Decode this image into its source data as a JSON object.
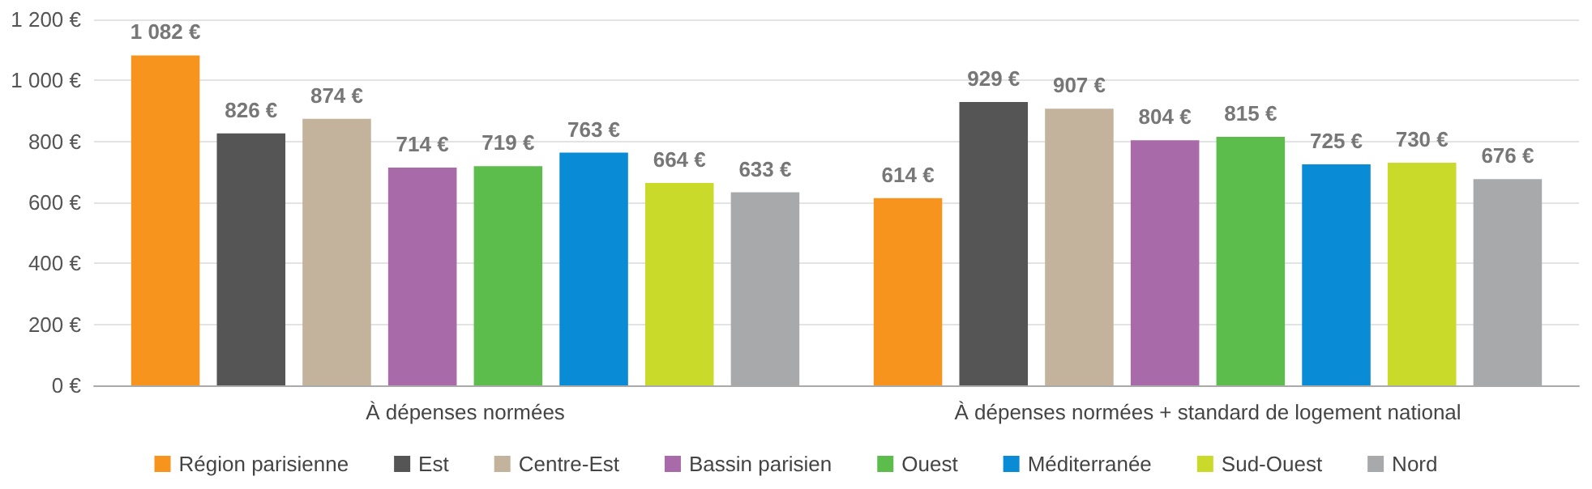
{
  "chart_data": {
    "type": "bar",
    "categories": [
      "À dépenses normées",
      "À dépenses normées + standard de logement national"
    ],
    "series": [
      {
        "name": "Région parisienne",
        "color": "#f7941d",
        "values": [
          1082,
          614
        ],
        "value_labels": [
          "1 082 €",
          "614 €"
        ]
      },
      {
        "name": "Est",
        "color": "#555555",
        "values": [
          826,
          929
        ],
        "value_labels": [
          "826 €",
          "929 €"
        ]
      },
      {
        "name": "Centre-Est",
        "color": "#c4b39c",
        "values": [
          874,
          907
        ],
        "value_labels": [
          "874 €",
          "907 €"
        ]
      },
      {
        "name": "Bassin parisien",
        "color": "#a86aa8",
        "values": [
          714,
          804
        ],
        "value_labels": [
          "714 €",
          "804 €"
        ]
      },
      {
        "name": "Ouest",
        "color": "#5cbc4c",
        "values": [
          719,
          815
        ],
        "value_labels": [
          "719 €",
          "815 €"
        ]
      },
      {
        "name": "Méditerranée",
        "color": "#0a8bd6",
        "values": [
          763,
          725
        ],
        "value_labels": [
          "763 €",
          "725 €"
        ]
      },
      {
        "name": "Sud-Ouest",
        "color": "#c9da2b",
        "values": [
          664,
          730
        ],
        "value_labels": [
          "664 €",
          "730 €"
        ]
      },
      {
        "name": "Nord",
        "color": "#a7a9ab",
        "values": [
          633,
          676
        ],
        "value_labels": [
          "633 €",
          "676 €"
        ]
      }
    ],
    "ylim": [
      0,
      1200
    ],
    "yticks": [
      {
        "value": 0,
        "label": "0 €"
      },
      {
        "value": 200,
        "label": "200 €"
      },
      {
        "value": 400,
        "label": "400 €"
      },
      {
        "value": 600,
        "label": "600 €"
      },
      {
        "value": 800,
        "label": "800 €"
      },
      {
        "value": 1000,
        "label": "1 000 €"
      },
      {
        "value": 1200,
        "label": "1 200 €"
      }
    ],
    "grid": "y",
    "legend": "bottom"
  }
}
